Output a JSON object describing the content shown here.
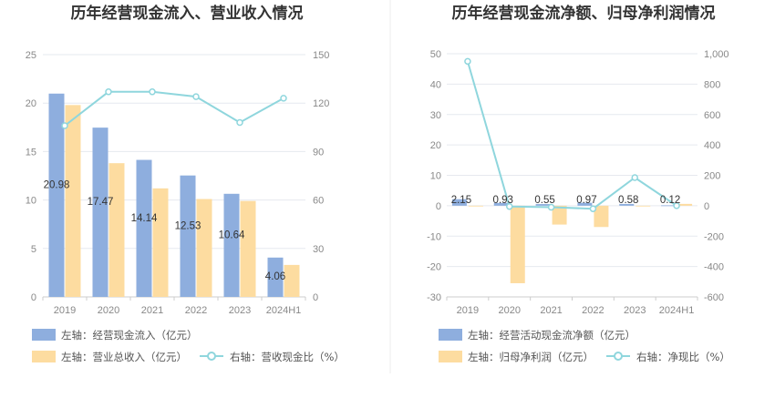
{
  "charts": [
    {
      "title": "历年经营现金流入、营业收入情况",
      "categories": [
        "2019",
        "2020",
        "2021",
        "2022",
        "2023",
        "2024H1"
      ],
      "left_ticks": [
        "0",
        "5",
        "10",
        "15",
        "20",
        "25"
      ],
      "right_ticks": [
        "0",
        "30",
        "60",
        "90",
        "120",
        "150"
      ],
      "legend": [
        {
          "label": "左轴：经营现金流入（亿元）",
          "color": "#8eaede"
        },
        {
          "label": "左轴：营业总收入（亿元）",
          "color": "#fddca0"
        },
        {
          "label": "右轴：营收现金比（%）",
          "color": "#8fd6dd"
        }
      ],
      "labels": [
        "20.98",
        "17.47",
        "14.14",
        "12.53",
        "10.64",
        "4.06"
      ]
    },
    {
      "title": "历年经营现金流净额、归母净利润情况",
      "categories": [
        "2019",
        "2020",
        "2021",
        "2022",
        "2023",
        "2024H1"
      ],
      "left_ticks": [
        "-30",
        "-20",
        "-10",
        "0",
        "10",
        "20",
        "30",
        "40",
        "50"
      ],
      "right_ticks": [
        "-600",
        "-400",
        "-200",
        "0",
        "200",
        "400",
        "600",
        "800",
        "1,000"
      ],
      "legend": [
        {
          "label": "左轴：经营活动现金流净额（亿元）",
          "color": "#8eaede"
        },
        {
          "label": "左轴：归母净利润（亿元）",
          "color": "#fddca0"
        },
        {
          "label": "右轴：净现比（%）",
          "color": "#8fd6dd"
        }
      ],
      "labels": [
        "2.15",
        "0.93",
        "0.55",
        "0.97",
        "0.58",
        "0.12"
      ]
    }
  ],
  "chart_data": [
    {
      "type": "bar",
      "title": "历年经营现金流入、营业收入情况",
      "categories": [
        "2019",
        "2020",
        "2021",
        "2022",
        "2023",
        "2024H1"
      ],
      "ylim": [
        0,
        25
      ],
      "y2lim": [
        0,
        150
      ],
      "series": [
        {
          "name": "左轴：经营现金流入（亿元）",
          "axis": "left",
          "type": "bar",
          "values": [
            20.98,
            17.47,
            14.14,
            12.53,
            10.64,
            4.06
          ]
        },
        {
          "name": "左轴：营业总收入（亿元）",
          "axis": "left",
          "type": "bar",
          "values": [
            19.8,
            13.8,
            11.2,
            10.1,
            9.9,
            3.3
          ]
        },
        {
          "name": "右轴：营收现金比（%）",
          "axis": "right",
          "type": "line",
          "values": [
            106,
            127,
            127,
            124,
            108,
            123
          ]
        }
      ],
      "grid": true,
      "legend_position": "bottom"
    },
    {
      "type": "bar",
      "title": "历年经营现金流净额、归母净利润情况",
      "categories": [
        "2019",
        "2020",
        "2021",
        "2022",
        "2023",
        "2024H1"
      ],
      "ylim": [
        -30,
        50
      ],
      "y2lim": [
        -600,
        1000
      ],
      "series": [
        {
          "name": "左轴：经营活动现金流净额（亿元）",
          "axis": "left",
          "type": "bar",
          "values": [
            2.15,
            0.93,
            0.55,
            0.97,
            0.58,
            0.12
          ]
        },
        {
          "name": "左轴：归母净利润（亿元）",
          "axis": "left",
          "type": "bar",
          "values": [
            -0.2,
            -25.5,
            -6.2,
            -7.0,
            -0.2,
            0.6
          ]
        },
        {
          "name": "右轴：净现比（%）",
          "axis": "right",
          "type": "line",
          "values": [
            950,
            -5,
            -10,
            -20,
            185,
            0
          ]
        }
      ],
      "grid": true,
      "legend_position": "bottom"
    }
  ]
}
